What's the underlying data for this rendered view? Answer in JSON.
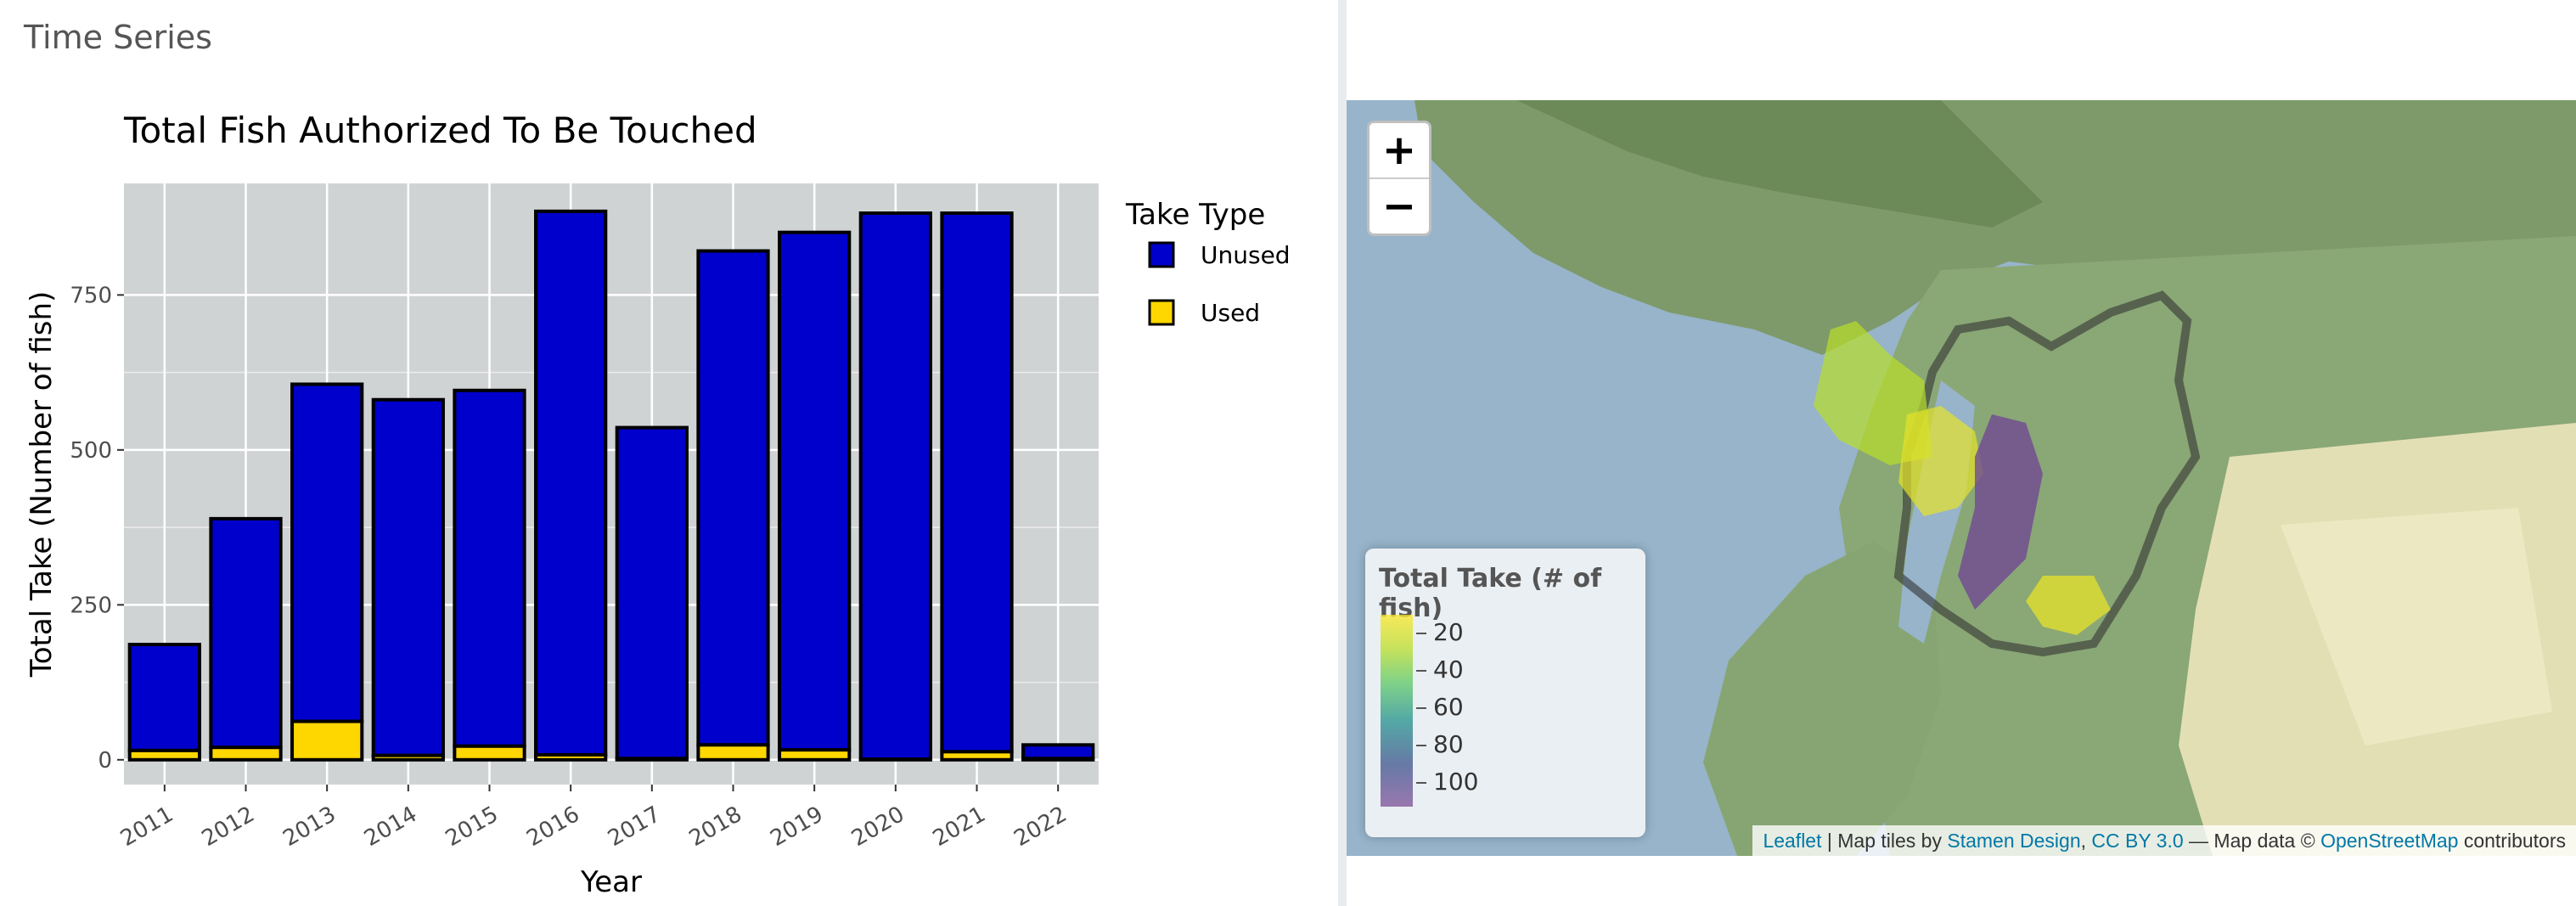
{
  "left": {
    "section_title": "Time Series"
  },
  "chart_data": {
    "type": "bar",
    "stacked": true,
    "title": "Total Fish Authorized To Be Touched",
    "xlabel": "Year",
    "ylabel": "Total Take (Number of fish)",
    "categories": [
      "2011",
      "2012",
      "2013",
      "2014",
      "2015",
      "2016",
      "2017",
      "2018",
      "2019",
      "2020",
      "2021",
      "2022"
    ],
    "yticks": [
      "0",
      "250",
      "500",
      "750"
    ],
    "ylim": [
      -40,
      930
    ],
    "series": [
      {
        "name": "Used",
        "values": [
          15,
          20,
          62,
          7,
          22,
          8,
          2,
          24,
          16,
          1,
          13,
          2
        ],
        "color": "#ffd700"
      },
      {
        "name": "Unused",
        "values": [
          171,
          369,
          544,
          574,
          574,
          877,
          534,
          797,
          835,
          881,
          869,
          22
        ],
        "color": "#0000cd"
      }
    ],
    "legend_title": "Take Type",
    "legend_entries": [
      "Unused",
      "Used"
    ],
    "legend_position": "right",
    "grid": true,
    "panel_color": "#d0d3d4"
  },
  "map": {
    "zoom_in": "+",
    "zoom_out": "−",
    "legend": {
      "title": "Total Take (# of fish)",
      "labels": [
        "20",
        "40",
        "60",
        "80",
        "100"
      ]
    },
    "attribution": {
      "leaflet": "Leaflet",
      "sep1": " | Map tiles by ",
      "stamen": "Stamen Design",
      "comma": ", ",
      "cc": "CC BY 3.0",
      "mid": " — Map data © ",
      "osm": "OpenStreetMap",
      "end": " contributors"
    }
  }
}
